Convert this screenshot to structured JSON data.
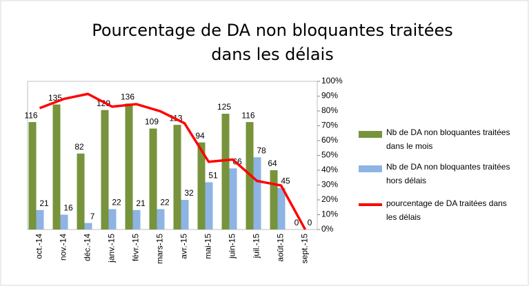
{
  "chart_data": {
    "type": "bar-line",
    "title": "Pourcentage de DA non bloquantes traitées",
    "subtitle": "dans les délais",
    "categories": [
      "oct.-14",
      "nov.-14",
      "déc.-14",
      "janv.-15",
      "févr.-15",
      "mars-15",
      "avr.-15",
      "mai-15",
      "juin-15",
      "juil.-15",
      "août-15",
      "sept.-15"
    ],
    "ylim": [
      0,
      160
    ],
    "y2lim": [
      0,
      100
    ],
    "y2ticks": [
      {
        "value": 0,
        "label": "0%"
      },
      {
        "value": 10,
        "label": "10%"
      },
      {
        "value": 20,
        "label": "20%"
      },
      {
        "value": 30,
        "label": "30%"
      },
      {
        "value": 40,
        "label": "40%"
      },
      {
        "value": 50,
        "label": "50%"
      },
      {
        "value": 60,
        "label": "60%"
      },
      {
        "value": 70,
        "label": "70%"
      },
      {
        "value": 80,
        "label": "80%"
      },
      {
        "value": 90,
        "label": "90%"
      },
      {
        "value": 100,
        "label": "100%"
      }
    ],
    "series": [
      {
        "name": "Nb de DA non bloquantes traitées dans le mois",
        "color": "#77933c",
        "values": [
          116,
          135,
          82,
          129,
          136,
          109,
          113,
          94,
          125,
          116,
          64,
          0
        ]
      },
      {
        "name": "Nb de DA non bloquantes traitées hors délais",
        "color": "#8eb4e3",
        "values": [
          21,
          16,
          7,
          22,
          21,
          22,
          32,
          51,
          66,
          78,
          45,
          0
        ]
      },
      {
        "name": "pourcentage de DA traitées dans les délais",
        "color": "#ff0000",
        "axis": "y2",
        "values": [
          81.9,
          88.1,
          91.5,
          82.9,
          84.6,
          79.8,
          71.7,
          45.7,
          47.2,
          32.8,
          29.7,
          0
        ]
      }
    ]
  }
}
